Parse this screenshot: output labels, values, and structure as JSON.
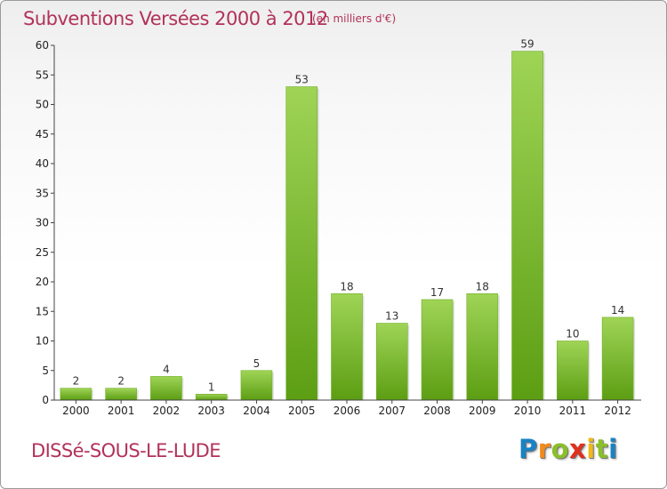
{
  "header": {
    "title": "Subventions Versées 2000 à 2012",
    "unit": "(en milliers d'€)"
  },
  "footer": {
    "commune": "DISSé-SOUS-LE-LUDE",
    "logo_letters": [
      "P",
      "r",
      "o",
      "x",
      "i",
      "t",
      "i"
    ],
    "logo_colors": [
      "#1a82c4",
      "#f08a1c",
      "#8bbf2a",
      "#e0301e",
      "#f0b81c",
      "#8bbf2a",
      "#1a82c4"
    ]
  },
  "colors": {
    "bar_light": "#9fd456",
    "bar_dark": "#5c9e13",
    "title": "#b2325a"
  },
  "chart_data": {
    "type": "bar",
    "title": "Subventions Versées 2000 à 2012",
    "xlabel": "",
    "ylabel": "",
    "ylim": [
      0,
      60
    ],
    "ytick_step": 5,
    "yticks": [
      "0",
      "5",
      "10",
      "15",
      "20",
      "25",
      "30",
      "35",
      "40",
      "45",
      "50",
      "55",
      "60"
    ],
    "grid": false,
    "categories": [
      "2000",
      "2001",
      "2002",
      "2003",
      "2004",
      "2005",
      "2006",
      "2007",
      "2008",
      "2009",
      "2010",
      "2011",
      "2012"
    ],
    "values": [
      2,
      2,
      4,
      1,
      5,
      53,
      18,
      13,
      17,
      18,
      59,
      10,
      14
    ],
    "data_labels": [
      "2",
      "2",
      "4",
      "1",
      "5",
      "53",
      "18",
      "13",
      "17",
      "18",
      "59",
      "10",
      "14"
    ]
  }
}
